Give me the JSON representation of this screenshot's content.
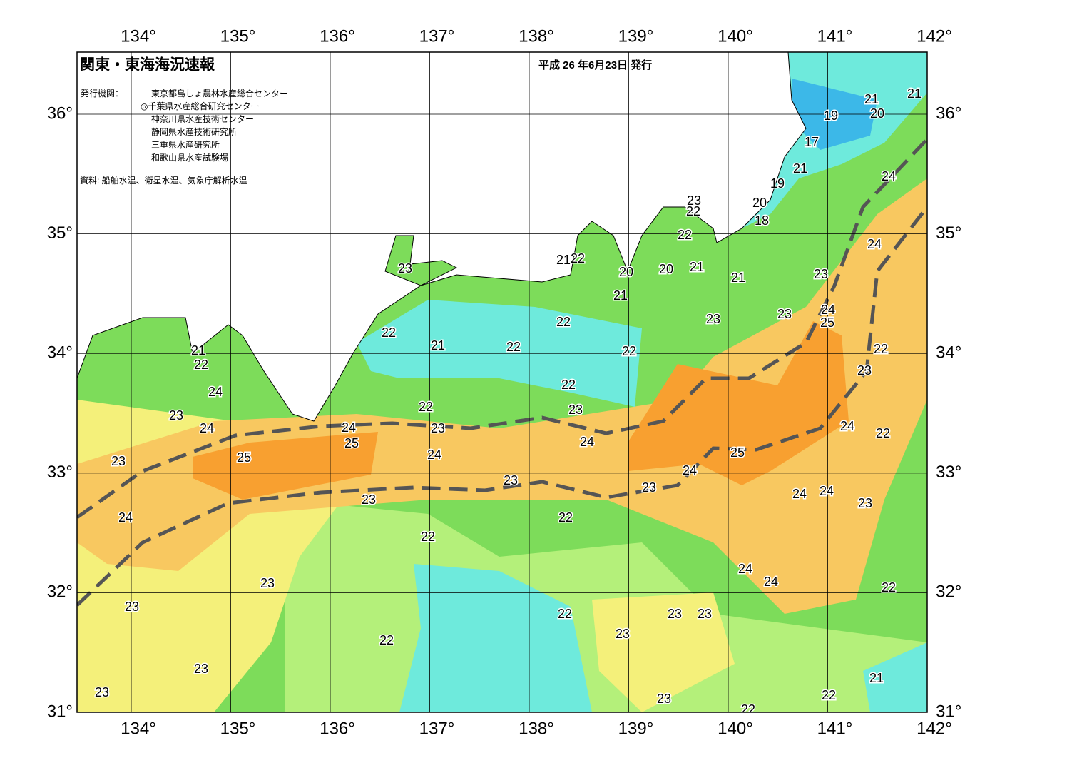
{
  "header": {
    "title": "関東・東海海況速報",
    "date": "平成 26 年6月23日 発行"
  },
  "issuers_label": "発行機関：",
  "issuers": [
    "東京都島しょ農林水産総合センター",
    "◎千葉県水産総合研究センター",
    "神奈川県水産技術センター",
    "静岡県水産技術研究所",
    "三重県水産研究所",
    "和歌山県水産試験場"
  ],
  "source": "資料: 船舶水温、衛星水温、気象庁解析水温",
  "lon_ticks": [
    {
      "value": 134,
      "label": "134°"
    },
    {
      "value": 135,
      "label": "135°"
    },
    {
      "value": 136,
      "label": "136°"
    },
    {
      "value": 137,
      "label": "137°"
    },
    {
      "value": 138,
      "label": "138°"
    },
    {
      "value": 139,
      "label": "139°"
    },
    {
      "value": 140,
      "label": "140°"
    },
    {
      "value": 141,
      "label": "141°"
    },
    {
      "value": 142,
      "label": "142°"
    }
  ],
  "lat_ticks": [
    {
      "value": 31,
      "label": "31°"
    },
    {
      "value": 32,
      "label": "32°"
    },
    {
      "value": 33,
      "label": "33°"
    },
    {
      "value": 34,
      "label": "34°"
    },
    {
      "value": 35,
      "label": "35°"
    },
    {
      "value": 36,
      "label": "36°"
    }
  ],
  "contour_labels": [
    "21",
    "21",
    "19",
    "20",
    "17",
    "21",
    "19",
    "24",
    "23",
    "22",
    "20",
    "18",
    "22",
    "24",
    "21",
    "22",
    "23",
    "20",
    "20",
    "21",
    "21",
    "23",
    "21",
    "24",
    "25",
    "22",
    "23",
    "23",
    "22",
    "21",
    "22",
    "22",
    "21",
    "22",
    "22",
    "23",
    "24",
    "22",
    "23",
    "22",
    "23",
    "24",
    "24",
    "23",
    "24",
    "22",
    "25",
    "24",
    "25",
    "24",
    "25",
    "23",
    "24",
    "23",
    "23",
    "24",
    "24",
    "23",
    "23",
    "24",
    "22",
    "22",
    "24",
    "23",
    "24",
    "22",
    "23",
    "22",
    "23",
    "23",
    "23",
    "22",
    "23",
    "21",
    "22",
    "23",
    "23",
    "22"
  ]
}
